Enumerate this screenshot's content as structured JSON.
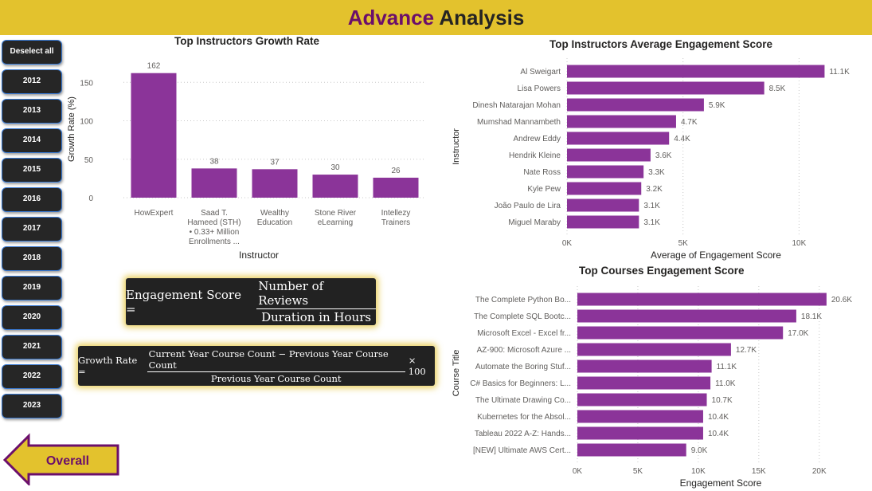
{
  "header": {
    "title_accent": "Advance",
    "title_rest": "Analysis"
  },
  "slicer": {
    "deselect_label": "Deselect all",
    "years": [
      "2012",
      "2013",
      "2014",
      "2015",
      "2016",
      "2017",
      "2018",
      "2019",
      "2020",
      "2021",
      "2022",
      "2023"
    ]
  },
  "back_button": {
    "label": "Overall"
  },
  "formulas": {
    "engagement": {
      "lhs": "Engagement Score =",
      "numerator": "Number of Reviews",
      "denominator": "Duration in Hours"
    },
    "growth": {
      "lhs": "Growth Rate =",
      "numerator": "Current Year Course Count − Previous Year Course Count",
      "denominator": "Previous Year Course Count",
      "suffix": "× 100"
    }
  },
  "colors": {
    "bar": "#8b3499",
    "header": "#e3c22d",
    "accent": "#6b0f6b",
    "slicer_bg": "#262626",
    "slicer_border": "#3a7bd5"
  },
  "chart_data": [
    {
      "id": "growth",
      "type": "bar",
      "title": "Top Instructors Growth Rate",
      "xlabel": "Instructor",
      "ylabel": "Growth Rate (%)",
      "categories": [
        [
          "HowExpert"
        ],
        [
          "Saad T.",
          "Hameed (STH)",
          "• 0.33+ Million",
          "Enrollments ..."
        ],
        [
          "Wealthy",
          "Education"
        ],
        [
          "Stone River",
          "eLearning"
        ],
        [
          "Intellezy",
          "Trainers"
        ]
      ],
      "values": [
        162,
        38,
        37,
        30,
        26
      ],
      "value_labels": [
        "162",
        "38",
        "37",
        "30",
        "26"
      ],
      "yticks": [
        0,
        50,
        100,
        150
      ],
      "ytick_labels": [
        "0",
        "50",
        "100",
        "150"
      ],
      "ylim": [
        0,
        170
      ],
      "grid": true
    },
    {
      "id": "engagement",
      "type": "bar",
      "orientation": "horizontal",
      "title": "Top Instructors Average Engagement Score",
      "xlabel": "Average of Engagement Score",
      "ylabel": "Instructor",
      "categories": [
        "Al Sweigart",
        "Lisa Powers",
        "Dinesh Natarajan Mohan",
        "Mumshad Mannambeth",
        "Andrew Eddy",
        "Hendrik Kleine",
        "Nate Ross",
        "Kyle Pew",
        "João Paulo de Lira",
        "Miguel Maraby"
      ],
      "values": [
        11100,
        8500,
        5900,
        4700,
        4400,
        3600,
        3300,
        3200,
        3100,
        3100
      ],
      "value_labels": [
        "11.1K",
        "8.5K",
        "5.9K",
        "4.7K",
        "4.4K",
        "3.6K",
        "3.3K",
        "3.2K",
        "3.1K",
        "3.1K"
      ],
      "xticks": [
        0,
        5000,
        10000
      ],
      "xtick_labels": [
        "0K",
        "5K",
        "10K"
      ],
      "xlim": [
        0,
        11600
      ],
      "grid": true
    },
    {
      "id": "courses",
      "type": "bar",
      "orientation": "horizontal",
      "title": "Top Courses Engagement Score",
      "xlabel": "Engagement Score",
      "ylabel": "Course Title",
      "categories": [
        "The Complete Python Bo...",
        "The Complete SQL Bootc...",
        "Microsoft Excel - Excel fr...",
        "AZ-900: Microsoft Azure ...",
        "Automate the Boring Stuf...",
        "C# Basics for Beginners: L...",
        "The Ultimate Drawing Co...",
        "Kubernetes for the Absol...",
        "Tableau 2022 A-Z: Hands...",
        "[NEW] Ultimate AWS Cert..."
      ],
      "values": [
        20600,
        18100,
        17000,
        12700,
        11100,
        11000,
        10700,
        10400,
        10400,
        9000
      ],
      "value_labels": [
        "20.6K",
        "18.1K",
        "17.0K",
        "12.7K",
        "11.1K",
        "11.0K",
        "10.7K",
        "10.4K",
        "10.4K",
        "9.0K"
      ],
      "xticks": [
        0,
        5000,
        10000,
        15000,
        20000
      ],
      "xtick_labels": [
        "0K",
        "5K",
        "10K",
        "15K",
        "20K"
      ],
      "xlim": [
        0,
        21200
      ],
      "grid": true
    }
  ]
}
